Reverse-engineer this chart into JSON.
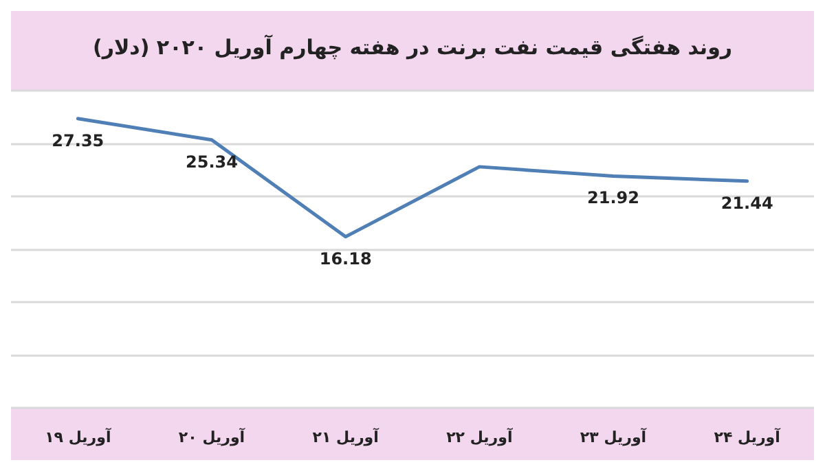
{
  "chart_data": {
    "type": "line",
    "title": "روند هفتگی قیمت نفت برنت در هفته چهارم آوریل ۲۰۲۰ (دلار)",
    "categories": [
      "۱۹ آوریل",
      "۲۰ آوریل",
      "۲۱ آوریل",
      "۲۲ آوریل",
      "۲۳ آوریل",
      "۲۴ آوریل"
    ],
    "series": [
      {
        "color": "#4f7fb5",
        "values": [
          27.35,
          25.34,
          16.18,
          22.8,
          21.92,
          21.44
        ],
        "value_labels": [
          "27.35",
          "25.34",
          "16.18",
          null,
          "21.92",
          "21.44"
        ]
      }
    ],
    "ylim": [
      0,
      30
    ],
    "yticks": [
      {
        "value": 0,
        "label": null
      },
      {
        "value": 5,
        "label": null
      },
      {
        "value": 10,
        "label": null
      },
      {
        "value": 15,
        "label": null
      },
      {
        "value": 20,
        "label": null
      },
      {
        "value": 25,
        "label": null
      },
      {
        "value": 30,
        "label": null
      }
    ],
    "grid": "y",
    "tick_labels": "x",
    "marker": "none",
    "line_style": "solid"
  }
}
